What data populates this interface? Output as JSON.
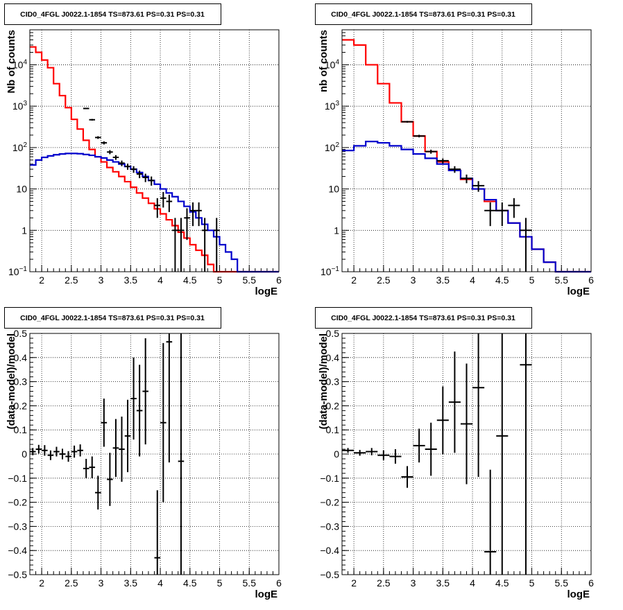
{
  "colors": {
    "background": "#ffffff",
    "frame": "#000000",
    "grid": "#000000",
    "model_total": "#ff0000",
    "model_source": "#0000cc",
    "data": "#000000"
  },
  "chart_data": [
    {
      "type": "line",
      "title": "CID0_4FGL J0022.1-1854 TS=873.61 PS=0.31 PS=0.31",
      "xlabel": "logE",
      "ylabel": "Nb of counts",
      "xlim": [
        1.8,
        6.0
      ],
      "ylim": [
        0.1,
        70000
      ],
      "yscale": "log",
      "grid": true,
      "x_ticks": [
        "2",
        "2.5",
        "3",
        "3.5",
        "4",
        "4.5",
        "5",
        "5.5",
        "6"
      ],
      "y_ticks": [
        {
          "value": 0.1,
          "base": "10",
          "exp": "−1"
        },
        {
          "value": 1,
          "label": "1"
        },
        {
          "value": 10,
          "label": "10"
        },
        {
          "value": 100,
          "base": "10",
          "exp": "2"
        },
        {
          "value": 1000,
          "base": "10",
          "exp": "3"
        },
        {
          "value": 10000,
          "base": "10",
          "exp": "4"
        }
      ],
      "bin_edges": [
        1.8,
        1.9,
        2.0,
        2.1,
        2.2,
        2.3,
        2.4,
        2.5,
        2.6,
        2.7,
        2.8,
        2.9,
        3.0,
        3.1,
        3.2,
        3.3,
        3.4,
        3.5,
        3.6,
        3.7,
        3.8,
        3.9,
        4.0,
        4.1,
        4.2,
        4.3,
        4.4,
        4.5,
        4.6,
        4.7,
        4.8,
        4.9,
        5.0,
        5.1,
        5.2,
        5.3,
        5.4,
        5.5,
        5.6,
        5.7,
        5.8,
        5.9,
        6.0
      ],
      "series": [
        {
          "name": "",
          "color": "#ff0000",
          "values": [
            27000,
            20000,
            13000,
            8500,
            3500,
            1800,
            920,
            480,
            280,
            150,
            90,
            60,
            45,
            33,
            26,
            20,
            15,
            11,
            8,
            6,
            4.5,
            3.3,
            2.5,
            1.8,
            1.3,
            0.9,
            0.65,
            0.45,
            0.33,
            0.25,
            0.15,
            0.1,
            0.1,
            0.1,
            0.1,
            0.1,
            0.1,
            0.1,
            0.1,
            0.1,
            0.1,
            0.1
          ]
        },
        {
          "name": "",
          "color": "#0000cc",
          "values": [
            38,
            50,
            58,
            63,
            67,
            70,
            72,
            72,
            71,
            68,
            65,
            60,
            56,
            50,
            45,
            40,
            35,
            30,
            25,
            20,
            16,
            13,
            10,
            8,
            6.5,
            5,
            3.8,
            2.8,
            2.0,
            1.4,
            1.0,
            0.7,
            0.45,
            0.3,
            0.2,
            0.1,
            0.1,
            0.1,
            0.1,
            0.1,
            0.1,
            0.1
          ]
        }
      ],
      "data_points": [
        {
          "x": 2.75,
          "y": 880
        },
        {
          "x": 2.85,
          "y": 470
        },
        {
          "x": 2.95,
          "y": 175
        },
        {
          "x": 3.05,
          "y": 130
        },
        {
          "x": 3.15,
          "y": 78
        },
        {
          "x": 3.25,
          "y": 58
        },
        {
          "x": 3.35,
          "y": 42
        },
        {
          "x": 3.45,
          "y": 35
        },
        {
          "x": 3.55,
          "y": 30
        },
        {
          "x": 3.65,
          "y": 23
        },
        {
          "x": 3.75,
          "y": 19
        },
        {
          "x": 3.85,
          "y": 16
        },
        {
          "x": 3.95,
          "y": 4
        },
        {
          "x": 4.05,
          "y": 6
        },
        {
          "x": 4.15,
          "y": 5
        },
        {
          "x": 4.25,
          "y": 1
        },
        {
          "x": 4.35,
          "y": 1
        },
        {
          "x": 4.45,
          "y": 2
        },
        {
          "x": 4.55,
          "y": 3
        },
        {
          "x": 4.65,
          "y": 3
        },
        {
          "x": 4.75,
          "y": 1
        },
        {
          "x": 4.95,
          "y": 1
        }
      ]
    },
    {
      "type": "line",
      "title": "CID0_4FGL J0022.1-1854 TS=873.61 PS=0.31 PS=0.31",
      "xlabel": "logE",
      "ylabel": "nb of counts",
      "xlim": [
        1.8,
        6.0
      ],
      "ylim": [
        0.1,
        70000
      ],
      "yscale": "log",
      "grid": true,
      "x_ticks": [
        "2",
        "2.5",
        "3",
        "3.5",
        "4",
        "4.5",
        "5",
        "5.5",
        "6"
      ],
      "y_ticks": [
        {
          "value": 0.1,
          "base": "10",
          "exp": "−1"
        },
        {
          "value": 1,
          "label": "1"
        },
        {
          "value": 10,
          "label": "10"
        },
        {
          "value": 100,
          "base": "10",
          "exp": "2"
        },
        {
          "value": 1000,
          "base": "10",
          "exp": "3"
        },
        {
          "value": 10000,
          "base": "10",
          "exp": "4"
        }
      ],
      "bin_edges": [
        1.8,
        2.0,
        2.2,
        2.4,
        2.6,
        2.8,
        3.0,
        3.2,
        3.4,
        3.6,
        3.8,
        4.0,
        4.2,
        4.4,
        4.6,
        4.8,
        5.0,
        5.2,
        5.4,
        5.6,
        5.8,
        6.0
      ],
      "series": [
        {
          "name": "",
          "color": "#ff0000",
          "values": [
            40000,
            30000,
            10000,
            3500,
            1200,
            420,
            190,
            80,
            45,
            28,
            17,
            10,
            5,
            3,
            1.5,
            0.7,
            0.35,
            0.17,
            0.1,
            0.1,
            0.1
          ]
        },
        {
          "name": "",
          "color": "#0000cc",
          "values": [
            85,
            110,
            140,
            130,
            110,
            90,
            70,
            55,
            40,
            28,
            18,
            10,
            5.5,
            3,
            1.5,
            0.7,
            0.35,
            0.17,
            0.1,
            0.1,
            0.1
          ]
        }
      ],
      "data_points": [
        {
          "x": 2.9,
          "y": 420
        },
        {
          "x": 3.1,
          "y": 190
        },
        {
          "x": 3.3,
          "y": 80
        },
        {
          "x": 3.5,
          "y": 48
        },
        {
          "x": 3.7,
          "y": 30
        },
        {
          "x": 3.9,
          "y": 18
        },
        {
          "x": 4.1,
          "y": 12
        },
        {
          "x": 4.3,
          "y": 3
        },
        {
          "x": 4.5,
          "y": 3
        },
        {
          "x": 4.7,
          "y": 4
        },
        {
          "x": 4.9,
          "y": 1
        }
      ]
    },
    {
      "type": "scatter",
      "title": "CID0_4FGL J0022.1-1854 TS=873.61 PS=0.31 PS=0.31",
      "xlabel": "logE",
      "ylabel": "(data-model)/model",
      "xlim": [
        1.8,
        6.0
      ],
      "ylim": [
        -0.5,
        0.5
      ],
      "grid": true,
      "x_ticks": [
        "2",
        "2.5",
        "3",
        "3.5",
        "4",
        "4.5",
        "5",
        "5.5",
        "6"
      ],
      "y_ticks": [
        "−0.5",
        "−0.4",
        "−0.3",
        "−0.2",
        "−0.1",
        "0",
        "0.1",
        "0.2",
        "0.3",
        "0.4",
        "0.5"
      ],
      "xerr": 0.05,
      "points": [
        {
          "x": 1.85,
          "y": 0.01,
          "err": 0.015
        },
        {
          "x": 1.95,
          "y": 0.02,
          "err": 0.018
        },
        {
          "x": 2.05,
          "y": 0.015,
          "err": 0.022
        },
        {
          "x": 2.15,
          "y": -0.005,
          "err": 0.02
        },
        {
          "x": 2.25,
          "y": 0.01,
          "err": 0.02
        },
        {
          "x": 2.35,
          "y": 0.0,
          "err": 0.022
        },
        {
          "x": 2.45,
          "y": -0.01,
          "err": 0.022
        },
        {
          "x": 2.55,
          "y": 0.01,
          "err": 0.025
        },
        {
          "x": 2.65,
          "y": 0.015,
          "err": 0.025
        },
        {
          "x": 2.75,
          "y": -0.06,
          "err": 0.04
        },
        {
          "x": 2.85,
          "y": -0.055,
          "err": 0.045
        },
        {
          "x": 2.95,
          "y": -0.16,
          "err": 0.07
        },
        {
          "x": 3.05,
          "y": 0.13,
          "err": 0.1
        },
        {
          "x": 3.15,
          "y": -0.105,
          "err": 0.11
        },
        {
          "x": 3.25,
          "y": 0.025,
          "err": 0.12
        },
        {
          "x": 3.35,
          "y": 0.02,
          "err": 0.135
        },
        {
          "x": 3.45,
          "y": 0.075,
          "err": 0.15
        },
        {
          "x": 3.55,
          "y": 0.23,
          "err": 0.17
        },
        {
          "x": 3.65,
          "y": 0.18,
          "err": 0.19
        },
        {
          "x": 3.75,
          "y": 0.26,
          "err": 0.22
        },
        {
          "x": 3.95,
          "y": -0.43,
          "err": 0.28
        },
        {
          "x": 4.05,
          "y": 0.13,
          "err": 0.33
        },
        {
          "x": 4.15,
          "y": 0.465,
          "err": 0.5
        },
        {
          "x": 4.35,
          "y": -0.03,
          "err": 0.6
        }
      ]
    },
    {
      "type": "scatter",
      "title": "CID0_4FGL J0022.1-1854 TS=873.61 PS=0.31 PS=0.31",
      "xlabel": "logE",
      "ylabel": "(data-model)/model",
      "xlim": [
        1.8,
        6.0
      ],
      "ylim": [
        -0.5,
        0.5
      ],
      "grid": true,
      "x_ticks": [
        "2",
        "2.5",
        "3",
        "3.5",
        "4",
        "4.5",
        "5",
        "5.5",
        "6"
      ],
      "y_ticks": [
        "−0.5",
        "−0.4",
        "−0.3",
        "−0.2",
        "−0.1",
        "0",
        "0.1",
        "0.2",
        "0.3",
        "0.4",
        "0.5"
      ],
      "xerr": 0.1,
      "points": [
        {
          "x": 1.9,
          "y": 0.015,
          "err": 0.01
        },
        {
          "x": 2.1,
          "y": 0.005,
          "err": 0.012
        },
        {
          "x": 2.3,
          "y": 0.01,
          "err": 0.015
        },
        {
          "x": 2.5,
          "y": -0.005,
          "err": 0.02
        },
        {
          "x": 2.7,
          "y": -0.01,
          "err": 0.03
        },
        {
          "x": 2.9,
          "y": -0.095,
          "err": 0.045
        },
        {
          "x": 3.1,
          "y": 0.035,
          "err": 0.07
        },
        {
          "x": 3.3,
          "y": 0.02,
          "err": 0.11
        },
        {
          "x": 3.5,
          "y": 0.14,
          "err": 0.14
        },
        {
          "x": 3.7,
          "y": 0.215,
          "err": 0.21
        },
        {
          "x": 3.9,
          "y": 0.125,
          "err": 0.25
        },
        {
          "x": 4.1,
          "y": 0.275,
          "err": 0.37
        },
        {
          "x": 4.3,
          "y": -0.405,
          "err": 0.34
        },
        {
          "x": 4.5,
          "y": 0.075,
          "err": 0.6
        },
        {
          "x": 4.9,
          "y": 0.37,
          "err": 0.9
        }
      ]
    }
  ]
}
